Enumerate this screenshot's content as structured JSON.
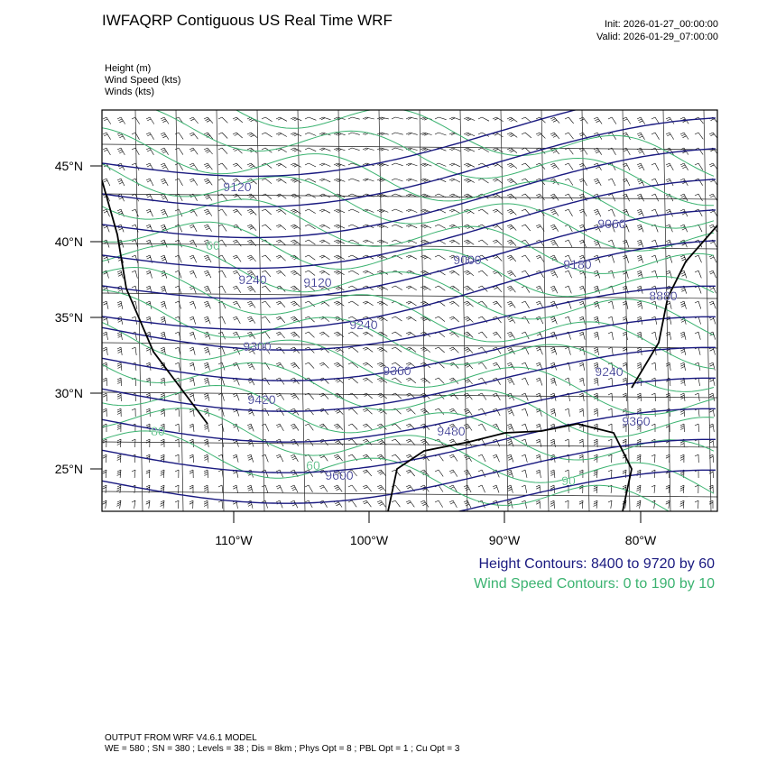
{
  "header": {
    "title": "IWFAQRP Contiguous US Real Time WRF",
    "init": "Init: 2026-01-27_00:00:00",
    "valid": "Valid: 2026-01-29_07:00:00"
  },
  "fields": [
    "Height   (m)",
    "Wind Speed   (kts)",
    "Winds   (kts)"
  ],
  "map": {
    "lat_labels": [
      "45°N",
      "40°N",
      "35°N",
      "30°N",
      "25°N"
    ],
    "lon_labels": [
      "110°W",
      "100°W",
      "90°W",
      "80°W"
    ],
    "contour_labels": [
      "9120",
      "60",
      "9240",
      "9120",
      "9240",
      "9300",
      "9360",
      "9420",
      "9480",
      "9600",
      "60",
      "9000",
      "9060",
      "9180",
      "8880",
      "9240",
      "9360",
      "80",
      "90"
    ]
  },
  "legend": {
    "height": "Height Contours: 8400 to 9720 by 60",
    "wind": "Wind Speed Contours: 0 to 190 by 10"
  },
  "footer": {
    "line1": "OUTPUT FROM WRF V4.6.1 MODEL",
    "line2": "WE = 580 ; SN = 380 ; Levels = 38 ; Dis = 8km ; Phys Opt = 8 ; PBL Opt = 1 ; Cu Opt = 3"
  }
}
